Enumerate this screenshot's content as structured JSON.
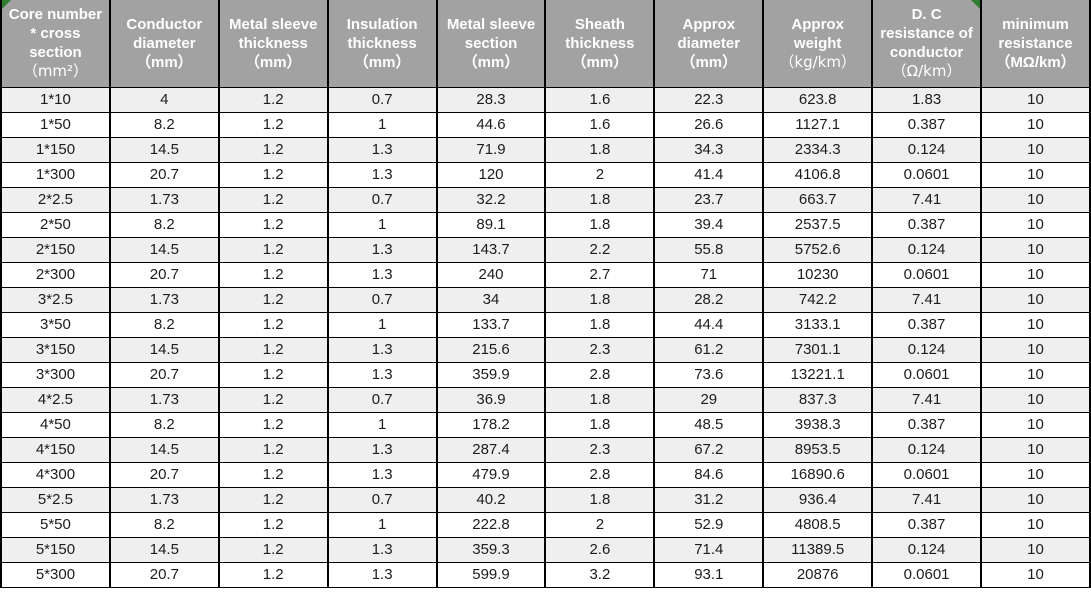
{
  "table": {
    "columns": [
      {
        "title": "Core number\n* cross\nsection",
        "unit": "（mm²）",
        "indicator": "top-left"
      },
      {
        "title": "Conductor\ndiameter",
        "unit": "（mm）"
      },
      {
        "title": "Metal sleeve\nthickness",
        "unit": "（mm）"
      },
      {
        "title": "Insulation\nthickness",
        "unit": "（mm）"
      },
      {
        "title": "Metal sleeve\nsection",
        "unit": "（mm）"
      },
      {
        "title": "Sheath\nthickness",
        "unit": "（mm）"
      },
      {
        "title": "Approx\ndiameter",
        "unit": "（mm）"
      },
      {
        "title": "Approx\nweight",
        "unit": "（kg/km）"
      },
      {
        "title": "D. C\nresistance of\nconductor",
        "unit": "（Ω/km）",
        "indicator": "top-right"
      },
      {
        "title": "minimum\nresistance",
        "unit": "（MΩ/km）"
      }
    ],
    "rows": [
      [
        "1*10",
        "4",
        "1.2",
        "0.7",
        "28.3",
        "1.6",
        "22.3",
        "623.8",
        "1.83",
        "10"
      ],
      [
        "1*50",
        "8.2",
        "1.2",
        "1",
        "44.6",
        "1.6",
        "26.6",
        "1127.1",
        "0.387",
        "10"
      ],
      [
        "1*150",
        "14.5",
        "1.2",
        "1.3",
        "71.9",
        "1.8",
        "34.3",
        "2334.3",
        "0.124",
        "10"
      ],
      [
        "1*300",
        "20.7",
        "1.2",
        "1.3",
        "120",
        "2",
        "41.4",
        "4106.8",
        "0.0601",
        "10"
      ],
      [
        "2*2.5",
        "1.73",
        "1.2",
        "0.7",
        "32.2",
        "1.8",
        "23.7",
        "663.7",
        "7.41",
        "10"
      ],
      [
        "2*50",
        "8.2",
        "1.2",
        "1",
        "89.1",
        "1.8",
        "39.4",
        "2537.5",
        "0.387",
        "10"
      ],
      [
        "2*150",
        "14.5",
        "1.2",
        "1.3",
        "143.7",
        "2.2",
        "55.8",
        "5752.6",
        "0.124",
        "10"
      ],
      [
        "2*300",
        "20.7",
        "1.2",
        "1.3",
        "240",
        "2.7",
        "71",
        "10230",
        "0.0601",
        "10"
      ],
      [
        "3*2.5",
        "1.73",
        "1.2",
        "0.7",
        "34",
        "1.8",
        "28.2",
        "742.2",
        "7.41",
        "10"
      ],
      [
        "3*50",
        "8.2",
        "1.2",
        "1",
        "133.7",
        "1.8",
        "44.4",
        "3133.1",
        "0.387",
        "10"
      ],
      [
        "3*150",
        "14.5",
        "1.2",
        "1.3",
        "215.6",
        "2.3",
        "61.2",
        "7301.1",
        "0.124",
        "10"
      ],
      [
        "3*300",
        "20.7",
        "1.2",
        "1.3",
        "359.9",
        "2.8",
        "73.6",
        "13221.1",
        "0.0601",
        "10"
      ],
      [
        "4*2.5",
        "1.73",
        "1.2",
        "0.7",
        "36.9",
        "1.8",
        "29",
        "837.3",
        "7.41",
        "10"
      ],
      [
        "4*50",
        "8.2",
        "1.2",
        "1",
        "178.2",
        "1.8",
        "48.5",
        "3938.3",
        "0.387",
        "10"
      ],
      [
        "4*150",
        "14.5",
        "1.2",
        "1.3",
        "287.4",
        "2.3",
        "67.2",
        "8953.5",
        "0.124",
        "10"
      ],
      [
        "4*300",
        "20.7",
        "1.2",
        "1.3",
        "479.9",
        "2.8",
        "84.6",
        "16890.6",
        "0.0601",
        "10"
      ],
      [
        "5*2.5",
        "1.73",
        "1.2",
        "0.7",
        "40.2",
        "1.8",
        "31.2",
        "936.4",
        "7.41",
        "10"
      ],
      [
        "5*50",
        "8.2",
        "1.2",
        "1",
        "222.8",
        "2",
        "52.9",
        "4808.5",
        "0.387",
        "10"
      ],
      [
        "5*150",
        "14.5",
        "1.2",
        "1.3",
        "359.3",
        "2.6",
        "71.4",
        "11389.5",
        "0.124",
        "10"
      ],
      [
        "5*300",
        "20.7",
        "1.2",
        "1.3",
        "599.9",
        "3.2",
        "93.1",
        "20876",
        "0.0601",
        "10"
      ]
    ]
  },
  "colors": {
    "header_bg": "#a2a2a2",
    "header_text": "#ffffff",
    "row_alt": "#efefef",
    "row_bg": "#ffffff",
    "grid_border": "#000000",
    "body_text": "#1c1c1c",
    "indicator_green": "#2e7d32"
  }
}
